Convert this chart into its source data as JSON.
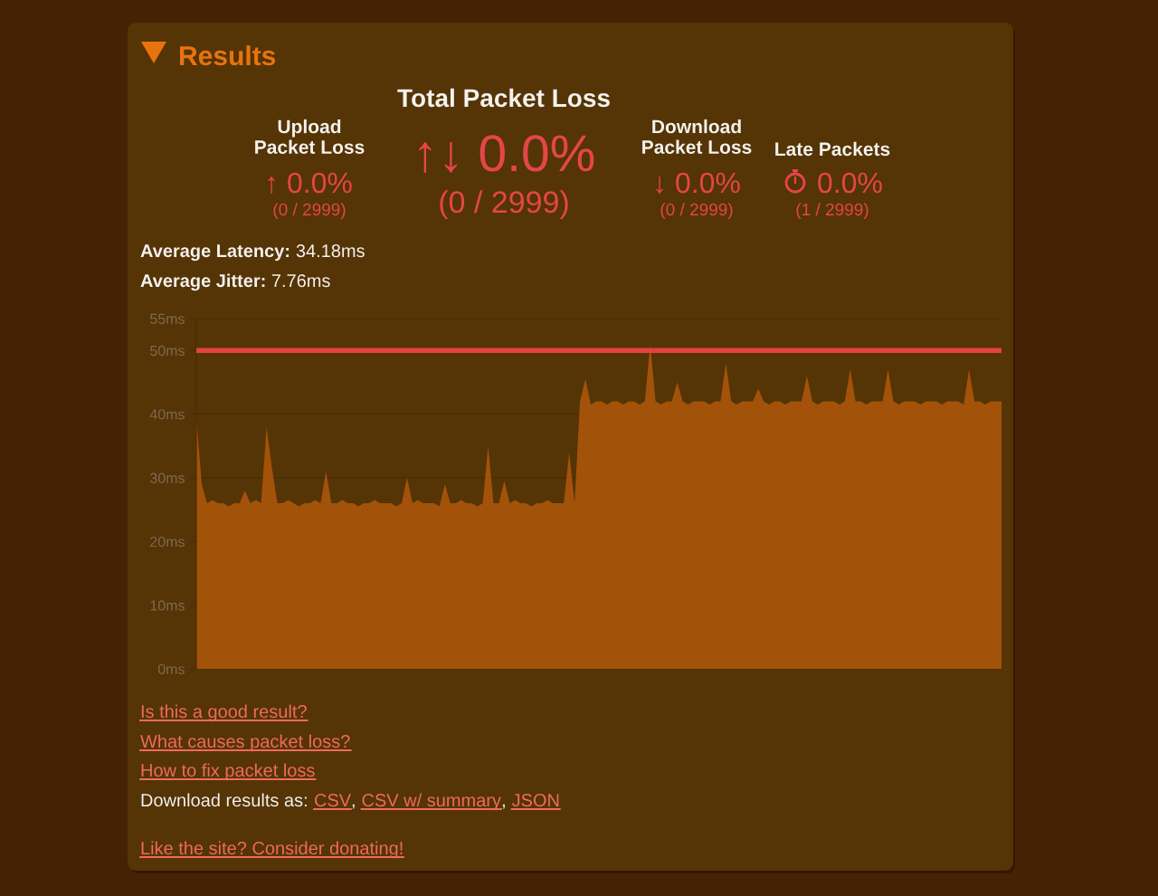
{
  "chart_data": [
    {
      "type": "other",
      "title": "Results",
      "annotations": [
        "Total Packet Loss",
        "Upload\nPacket Loss",
        "↑ 0.0%",
        "(0 / 2999)",
        "↑↓ 0.0%",
        "(0 / 2999)",
        "Download\nPacket Loss",
        "↓ 0.0%",
        "(0 / 2999)",
        "Late Packets",
        "0.0%",
        "(1 / 2999)",
        "Average Latency:",
        "34.18ms",
        "Average Jitter:",
        "7.76ms",
        "Is this a good result?",
        "What causes packet loss?",
        "How to fix packet loss",
        "Download results as:",
        "CSV",
        ",",
        "CSV w/ summary",
        ",",
        "JSON",
        "Like the site? Consider donating!"
      ]
    },
    {
      "type": "area",
      "categories": [
        null,
        null,
        null,
        null,
        null,
        null,
        null,
        null,
        null,
        null,
        null,
        null,
        null,
        null,
        null,
        null,
        null,
        null,
        null,
        null,
        null,
        null,
        null,
        null,
        null,
        null,
        null,
        null,
        null,
        null,
        null,
        null,
        null,
        null,
        null,
        null,
        null,
        null,
        null,
        null,
        null,
        null,
        null,
        null,
        null,
        null,
        null,
        null,
        null,
        null,
        null,
        null,
        null,
        null,
        null,
        null,
        null,
        null,
        null,
        null,
        null,
        null,
        null,
        null,
        null,
        null,
        null,
        null,
        null,
        null,
        null,
        null,
        null,
        null,
        null,
        null,
        null,
        null,
        null,
        null,
        null,
        null,
        null,
        null,
        null,
        null,
        null,
        null,
        null,
        null,
        null,
        null,
        null,
        null,
        null,
        null,
        null,
        null,
        null,
        null,
        null,
        null,
        null,
        null,
        null,
        null,
        null,
        null,
        null,
        null,
        null,
        null,
        null,
        null,
        null,
        null,
        null,
        null,
        null,
        null,
        null,
        null,
        null,
        null,
        null,
        null,
        null,
        null,
        null,
        null,
        null,
        null,
        null,
        null,
        null,
        null,
        null,
        null,
        null,
        null,
        null,
        null,
        null,
        null,
        null,
        null,
        null,
        null,
        null,
        null
      ],
      "series": [
        {
          "color": "#a3520a",
          "values": [
            39.5,
            29,
            26,
            26.5,
            26,
            26,
            25.5,
            26,
            26,
            28,
            26,
            26.5,
            26,
            38,
            31.5,
            26,
            26,
            26.5,
            26,
            25.5,
            26,
            26,
            26.5,
            26,
            31,
            26,
            26,
            26.5,
            26,
            26,
            25.5,
            26,
            26,
            26.5,
            26,
            26,
            26,
            25.5,
            26,
            30,
            26,
            26.5,
            26,
            26,
            26,
            25.5,
            29,
            26,
            26,
            26.5,
            26,
            26,
            25.5,
            26,
            35,
            26,
            26,
            29.5,
            26,
            26.5,
            26,
            26,
            25.5,
            26,
            26,
            26.5,
            26,
            26,
            26,
            34,
            26,
            42,
            45.5,
            41.5,
            42,
            42,
            41.5,
            42,
            42,
            41.5,
            42,
            42,
            41.5,
            42,
            51,
            42,
            41.5,
            42,
            42,
            45,
            42,
            41.5,
            42,
            42,
            42,
            41.5,
            42,
            42,
            48,
            42,
            41.5,
            42,
            42,
            42,
            44,
            42,
            41.5,
            42,
            42,
            41.5,
            42,
            42,
            42,
            46,
            42,
            41.5,
            42,
            42,
            42,
            41.5,
            42,
            47,
            42,
            42,
            41.5,
            42,
            42,
            42,
            47,
            42,
            41.5,
            42,
            42,
            42,
            41.5,
            42,
            42,
            42,
            41.5,
            42,
            42,
            42,
            41.5,
            47,
            42,
            42,
            41.5,
            42,
            42,
            42
          ]
        }
      ],
      "ylim": [
        0,
        55
      ],
      "yticks": [
        {
          "value": 0,
          "label": "0ms"
        },
        {
          "value": 10,
          "label": "10ms"
        },
        {
          "value": 20,
          "label": "20ms"
        },
        {
          "value": 30,
          "label": "30ms"
        },
        {
          "value": 40,
          "label": "40ms"
        },
        {
          "value": 50,
          "label": "50ms"
        },
        {
          "value": 55,
          "label": "55ms"
        }
      ],
      "ref_lines": [
        {
          "axis": "y",
          "value": 50,
          "color": "#e4423f"
        }
      ],
      "grid": "y",
      "tick_labels": "y"
    }
  ]
}
